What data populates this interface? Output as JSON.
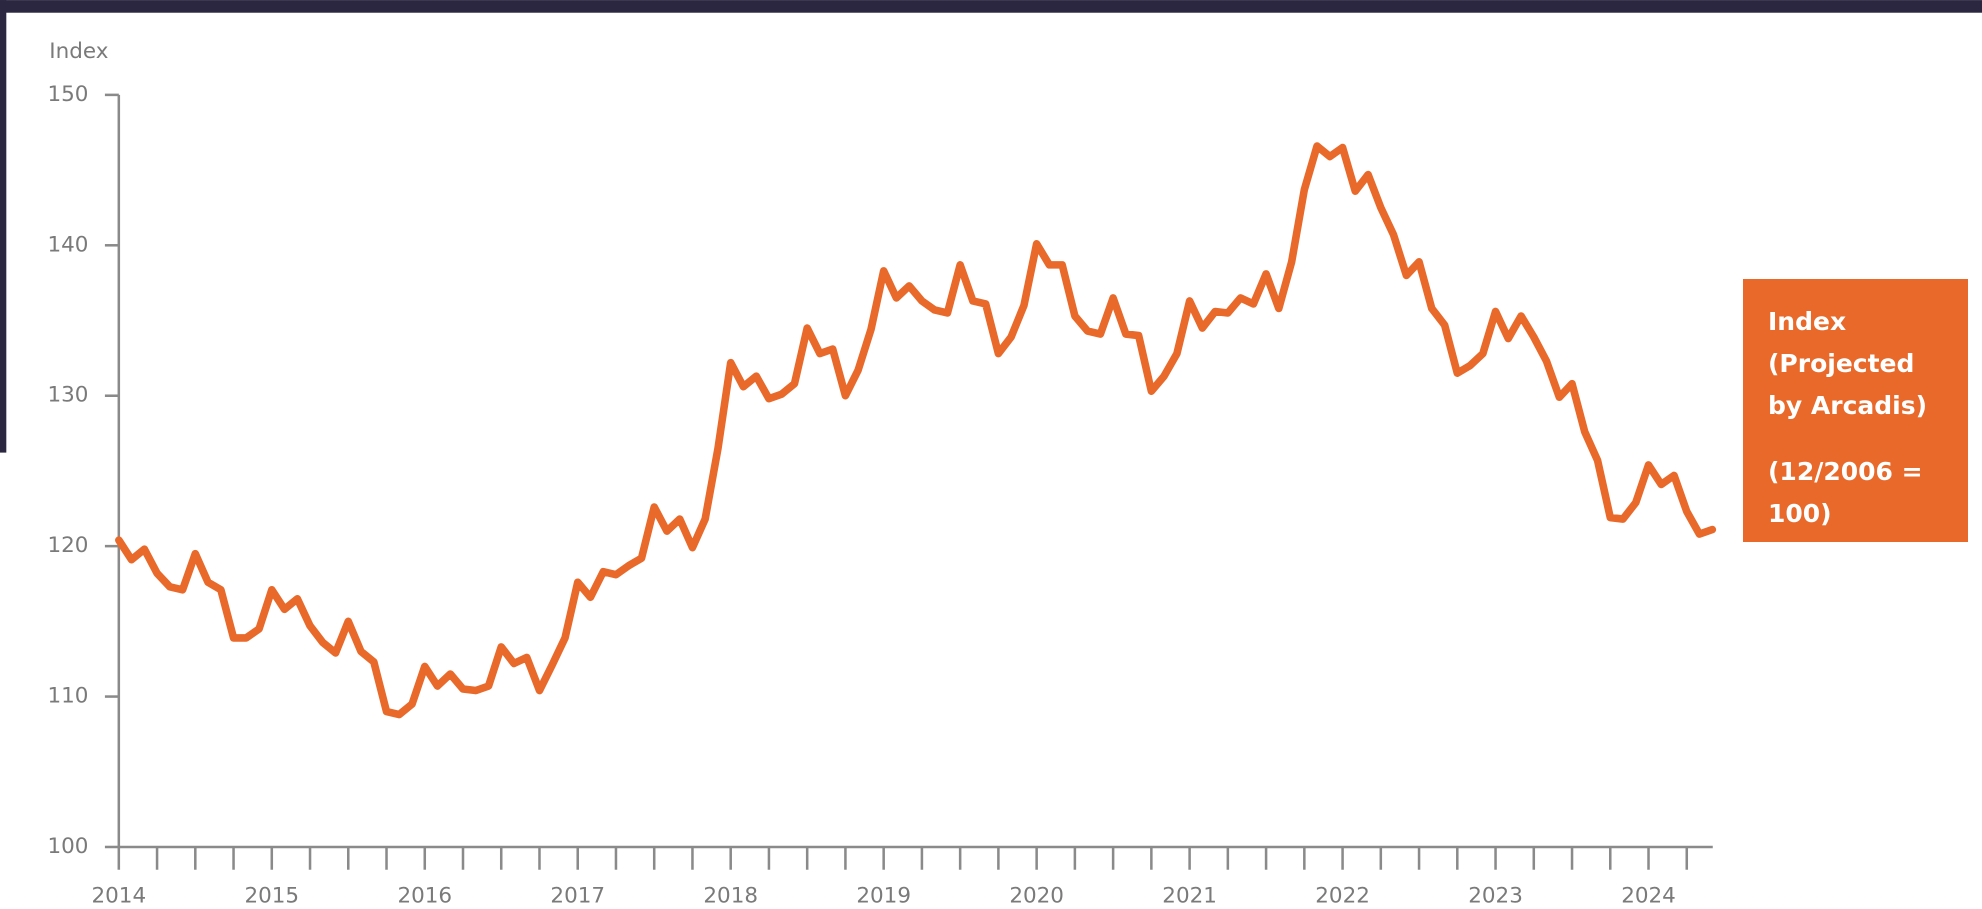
{
  "chart_data": {
    "type": "line",
    "y_label": "Index",
    "x": [
      2014,
      2014.083,
      2014.167,
      2014.25,
      2014.333,
      2014.417,
      2014.5,
      2014.583,
      2014.667,
      2014.75,
      2014.833,
      2014.917,
      2015,
      2015.083,
      2015.167,
      2015.25,
      2015.333,
      2015.417,
      2015.5,
      2015.583,
      2015.667,
      2015.75,
      2015.833,
      2015.917,
      2016,
      2016.083,
      2016.167,
      2016.25,
      2016.333,
      2016.417,
      2016.5,
      2016.583,
      2016.667,
      2016.75,
      2016.833,
      2016.917,
      2017,
      2017.083,
      2017.167,
      2017.25,
      2017.333,
      2017.417,
      2017.5,
      2017.583,
      2017.667,
      2017.75,
      2017.833,
      2017.917,
      2018,
      2018.083,
      2018.167,
      2018.25,
      2018.333,
      2018.417,
      2018.5,
      2018.583,
      2018.667,
      2018.75,
      2018.833,
      2018.917,
      2019,
      2019.083,
      2019.167,
      2019.25,
      2019.333,
      2019.417,
      2019.5,
      2019.583,
      2019.667,
      2019.75,
      2019.833,
      2019.917,
      2020,
      2020.083,
      2020.167,
      2020.25,
      2020.333,
      2020.417,
      2020.5,
      2020.583,
      2020.667,
      2020.75,
      2020.833,
      2020.917,
      2021,
      2021.083,
      2021.167,
      2021.25,
      2021.333,
      2021.417,
      2021.5,
      2021.583,
      2021.667,
      2021.75,
      2021.833,
      2021.917,
      2022,
      2022.083,
      2022.167,
      2022.25,
      2022.333,
      2022.417,
      2022.5,
      2022.583,
      2022.667,
      2022.75,
      2022.833,
      2022.917,
      2023,
      2023.083,
      2023.167,
      2023.25,
      2023.333,
      2023.417,
      2023.5,
      2023.583,
      2023.667,
      2023.75,
      2023.833,
      2023.917,
      2024,
      2024.083,
      2024.167,
      2024.25,
      2024.333,
      2024.417
    ],
    "series": [
      {
        "name": "Index (Projected by Arcadis)",
        "color": "#e8692a",
        "values": [
          120.4,
          119.1,
          119.8,
          118.2,
          117.3,
          117.1,
          119.5,
          117.6,
          117.1,
          113.9,
          113.9,
          114.5,
          117.1,
          115.8,
          116.5,
          114.7,
          113.6,
          112.9,
          115.0,
          113.0,
          112.3,
          109.0,
          108.8,
          109.5,
          112.0,
          110.7,
          111.5,
          110.5,
          110.4,
          110.7,
          113.3,
          112.2,
          112.6,
          110.4,
          112.1,
          113.9,
          117.6,
          116.6,
          118.3,
          118.1,
          118.7,
          119.2,
          122.6,
          121.0,
          121.8,
          119.9,
          121.8,
          126.5,
          132.2,
          130.6,
          131.3,
          129.8,
          130.1,
          130.8,
          134.5,
          132.8,
          133.1,
          130.0,
          131.7,
          134.4,
          138.3,
          136.5,
          137.3,
          136.3,
          135.7,
          135.5,
          138.7,
          136.3,
          136.1,
          132.8,
          133.9,
          136.0,
          140.1,
          138.7,
          138.7,
          135.3,
          134.3,
          134.1,
          136.5,
          134.1,
          134.0,
          130.3,
          131.3,
          132.8,
          136.3,
          134.5,
          135.6,
          135.5,
          136.5,
          136.1,
          138.1,
          135.8,
          138.9,
          143.7,
          146.6,
          145.9,
          146.5,
          143.6,
          144.7,
          142.5,
          140.7,
          138.0,
          138.9,
          135.8,
          134.7,
          131.5,
          132.0,
          132.8,
          135.6,
          133.8,
          135.3,
          133.9,
          132.3,
          129.9,
          130.8,
          127.6,
          125.7,
          121.9,
          121.8,
          122.9,
          125.4,
          124.1,
          124.7,
          122.3,
          120.8,
          121.1
        ]
      }
    ],
    "legend_note": "(12/2006 = 100)",
    "legend_position": "right",
    "xlim": [
      2014,
      2024.42
    ],
    "xticks": [
      2014,
      2015,
      2016,
      2017,
      2018,
      2019,
      2020,
      2021,
      2022,
      2023,
      2024
    ],
    "xminorticks": [
      2014.25,
      2014.5,
      2014.75,
      2015.25,
      2015.5,
      2015.75,
      2016.25,
      2016.5,
      2016.75,
      2017.25,
      2017.5,
      2017.75,
      2018.25,
      2018.5,
      2018.75,
      2019.25,
      2019.5,
      2019.75,
      2020.25,
      2020.5,
      2020.75,
      2021.25,
      2021.5,
      2021.75,
      2022.25,
      2022.5,
      2022.75,
      2023.25,
      2023.5,
      2023.75,
      2024.25
    ],
    "ylim": [
      100,
      150
    ],
    "yticks": [
      100,
      110,
      120,
      130,
      140,
      150
    ],
    "grid": false
  }
}
